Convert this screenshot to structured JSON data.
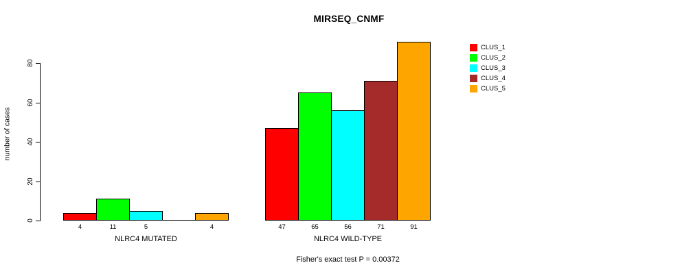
{
  "chart_data": {
    "type": "bar",
    "title": "MIRSEQ_CNMF",
    "ylabel": "number of cases",
    "xlabel": "",
    "ylim": [
      0,
      80
    ],
    "yticks": [
      0,
      20,
      40,
      60,
      80
    ],
    "grid": false,
    "legend_position": "right",
    "annotation": "Fisher's exact test P = 0.00372",
    "groups": [
      {
        "label": "NLRC4 MUTATED",
        "values": [
          4,
          11,
          5,
          0,
          4
        ],
        "bar_labels": [
          "4",
          "11",
          "5",
          "",
          "4"
        ]
      },
      {
        "label": "NLRC4 WILD-TYPE",
        "values": [
          47,
          65,
          56,
          71,
          91
        ],
        "bar_labels": [
          "47",
          "65",
          "56",
          "71",
          "91"
        ]
      }
    ],
    "series": [
      {
        "name": "CLUS_1",
        "color": "#FF0000"
      },
      {
        "name": "CLUS_2",
        "color": "#00FF00"
      },
      {
        "name": "CLUS_3",
        "color": "#00FFFF"
      },
      {
        "name": "CLUS_4",
        "color": "#A52A2A"
      },
      {
        "name": "CLUS_5",
        "color": "#FFA500"
      }
    ],
    "axis_color": "#000000",
    "bar_border_color": "#000000"
  }
}
